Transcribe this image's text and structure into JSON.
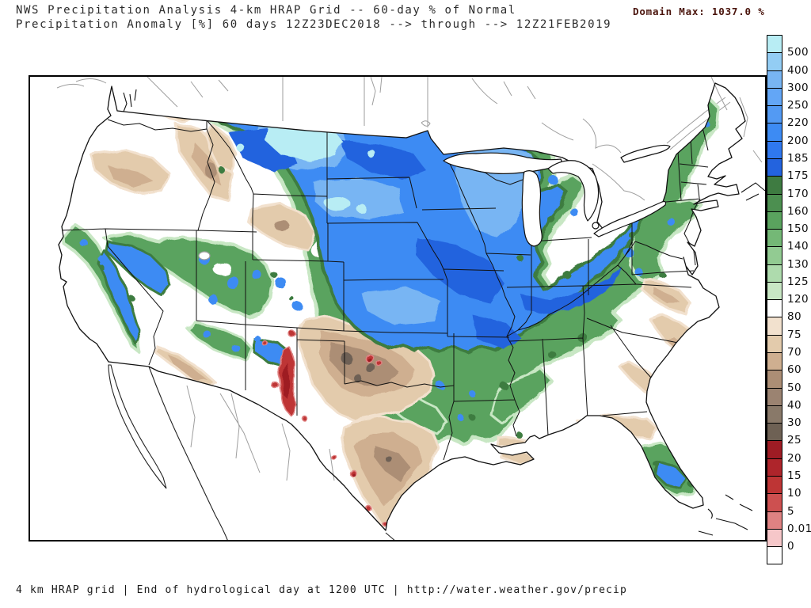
{
  "header": {
    "title_line1": "NWS Precipitation Analysis 4-km HRAP Grid -- 60-day % of Normal",
    "title_line2": "Precipitation Anomaly [%] 60 days 12Z23DEC2018 --> through --> 12Z21FEB2019",
    "domain_max_label": "Domain Max:",
    "domain_max_value": "1037.0 %",
    "domain_max_color": "#4a140c"
  },
  "footer": {
    "text": "4 km HRAP grid | End of hydrological day at 1200 UTC | http://water.weather.gov/precip"
  },
  "map": {
    "region": "Contiguous United States",
    "units": "% of normal precipitation",
    "border_color": "#000000",
    "neighbor_line_color": "#9e9e9e",
    "water_fill": "#ffffff"
  },
  "legend": {
    "orientation": "vertical",
    "cells": [
      {
        "color": "#b8edf4",
        "label": "500"
      },
      {
        "color": "#93cdf4",
        "label": "400"
      },
      {
        "color": "#78b5f3",
        "label": "300"
      },
      {
        "color": "#63a6f6",
        "label": "250"
      },
      {
        "color": "#539af3",
        "label": "220"
      },
      {
        "color": "#3d8bf3",
        "label": "200"
      },
      {
        "color": "#2f78ef",
        "label": "185"
      },
      {
        "color": "#2363de",
        "label": "175"
      },
      {
        "color": "#3e7b41",
        "label": "170"
      },
      {
        "color": "#4c8f50",
        "label": "160"
      },
      {
        "color": "#5aa35e",
        "label": "150"
      },
      {
        "color": "#74b876",
        "label": "140"
      },
      {
        "color": "#92cb92",
        "label": "130"
      },
      {
        "color": "#aedbad",
        "label": "125"
      },
      {
        "color": "#c8e7c4",
        "label": "120"
      },
      {
        "color": "#ffffff",
        "label": "80"
      },
      {
        "color": "#f2e1ce",
        "label": "75"
      },
      {
        "color": "#e3cbac",
        "label": "70"
      },
      {
        "color": "#cfaf90",
        "label": "60"
      },
      {
        "color": "#ac8e75",
        "label": "50"
      },
      {
        "color": "#9b8371",
        "label": "40"
      },
      {
        "color": "#897969",
        "label": "30"
      },
      {
        "color": "#6e6154",
        "label": "25"
      },
      {
        "color": "#9e1c24",
        "label": "20"
      },
      {
        "color": "#ae252b",
        "label": "15"
      },
      {
        "color": "#be3535",
        "label": "10"
      },
      {
        "color": "#cd5050",
        "label": "5"
      },
      {
        "color": "#df8282",
        "label": "0.01"
      },
      {
        "color": "#f6c7c9",
        "label": "0"
      },
      {
        "color": "#ffffff",
        "label": null
      }
    ]
  }
}
